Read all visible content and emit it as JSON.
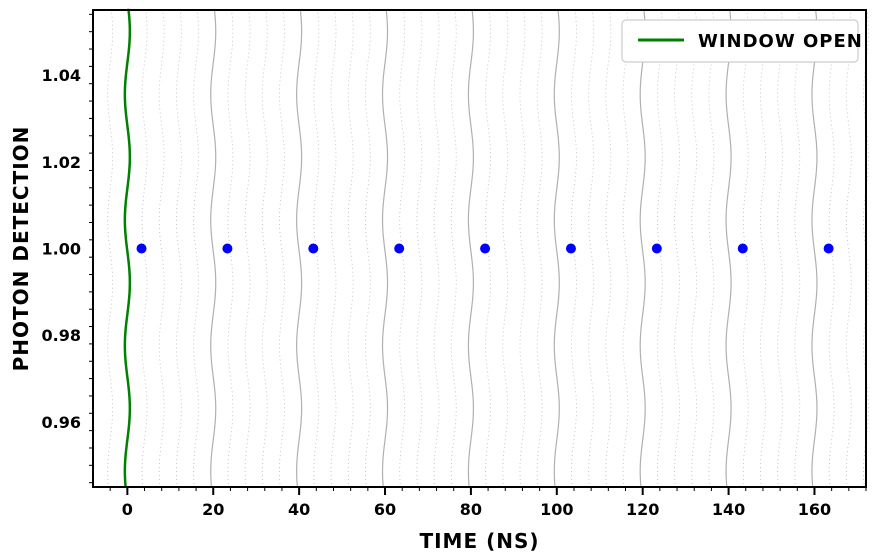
{
  "chart_data": {
    "type": "scatter",
    "title": "",
    "xlabel": "TIME (NS)",
    "ylabel": "PHOTON DETECTION",
    "xlim": [
      -8,
      172
    ],
    "ylim": [
      0.945,
      1.055
    ],
    "xticks": [
      0,
      20,
      40,
      60,
      80,
      100,
      120,
      140,
      160
    ],
    "xtick_labels": [
      "0",
      "20",
      "40",
      "60",
      "80",
      "100",
      "120",
      "140",
      "160"
    ],
    "yticks": [
      0.96,
      0.98,
      1.0,
      1.02,
      1.04
    ],
    "ytick_labels": [
      "0.96",
      "0.98",
      "1.00",
      "1.02",
      "1.04"
    ],
    "grid": true,
    "legend_position": "top-right",
    "window_open": {
      "name": "WINDOW OPEN",
      "x": 0,
      "color": "#008000"
    },
    "points": {
      "color": "#0000ff",
      "x": [
        3.3,
        23.3,
        43.3,
        63.3,
        83.3,
        103.3,
        123.3,
        143.3,
        163.3
      ],
      "y": [
        1.0,
        1.0,
        1.0,
        1.0,
        1.0,
        1.0,
        1.0,
        1.0,
        1.0
      ]
    }
  }
}
